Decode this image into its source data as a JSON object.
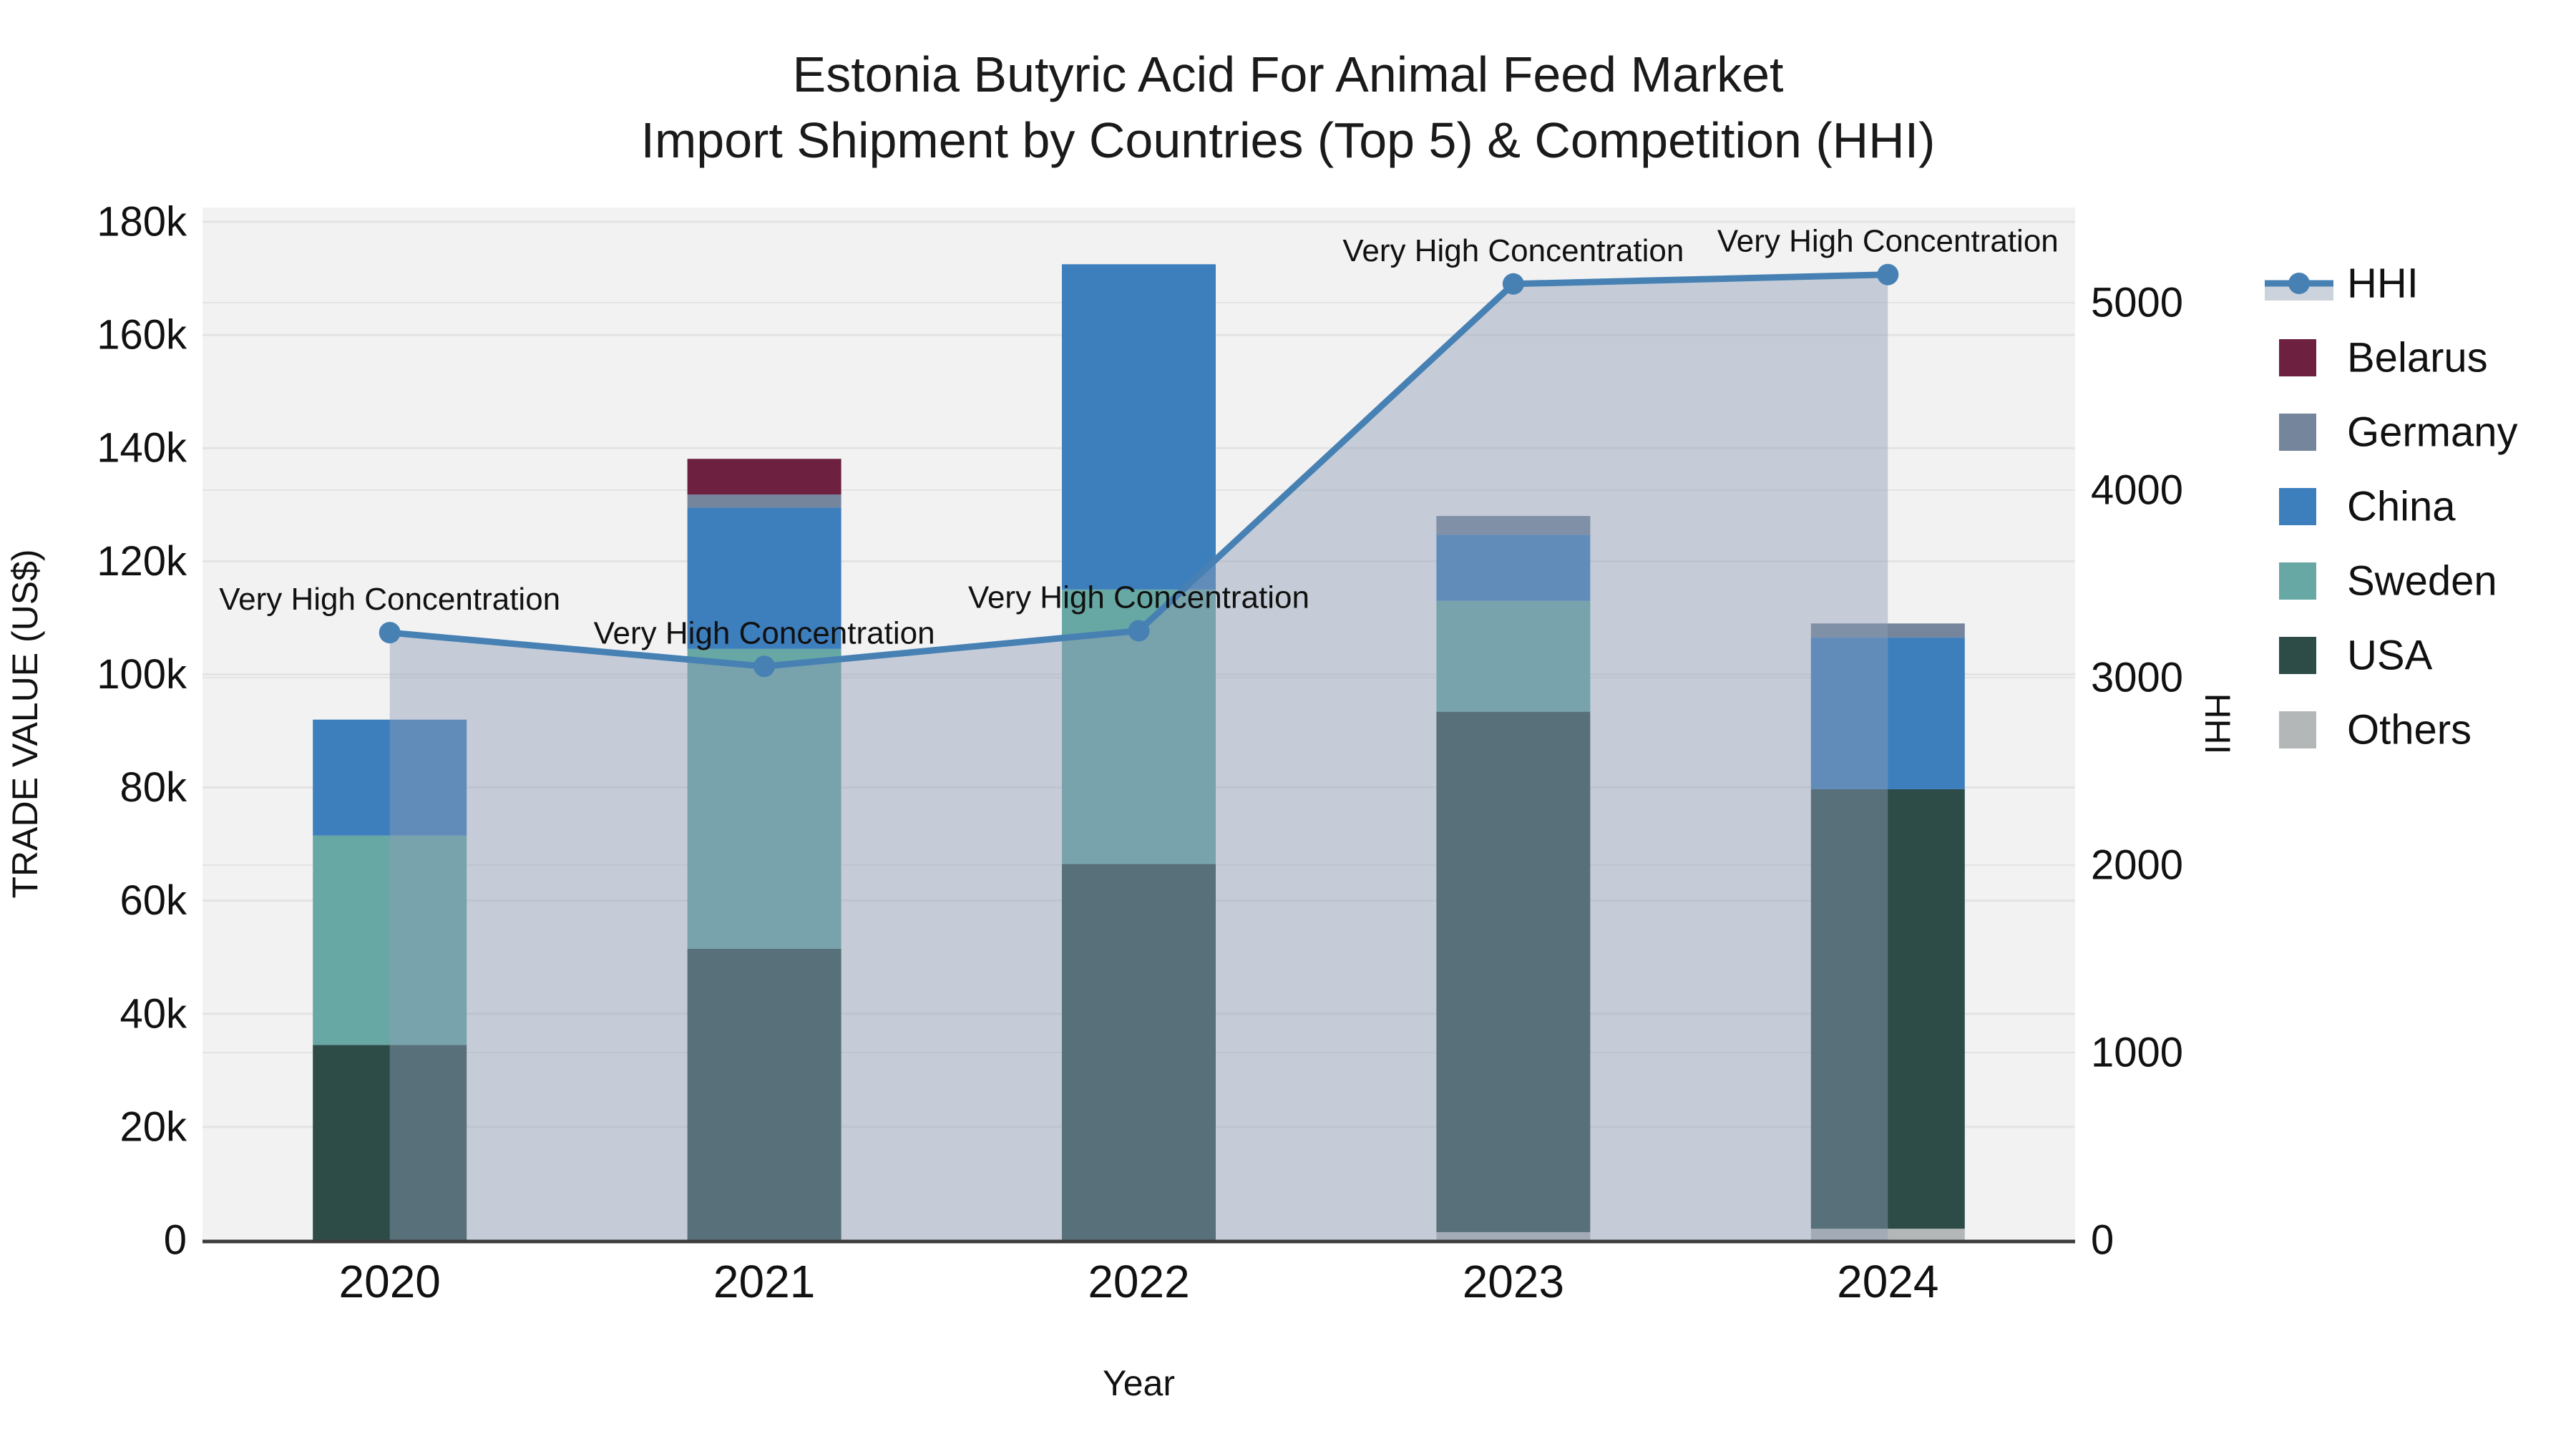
{
  "title": {
    "line1": "Estonia Butyric Acid For Animal Feed Market",
    "line2": "Import Shipment by Countries (Top 5) & Competition (HHI)"
  },
  "axes": {
    "x_label": "Year",
    "y_left_label": "TRADE VALUE (US$)",
    "y_right_label": "HHI",
    "y_left_ticks": [
      "0",
      "20k",
      "40k",
      "60k",
      "80k",
      "100k",
      "120k",
      "140k",
      "160k",
      "180k"
    ],
    "y_right_ticks": [
      "0",
      "1000",
      "2000",
      "3000",
      "4000",
      "5000"
    ]
  },
  "legend": {
    "items": [
      "HHI",
      "Belarus",
      "Germany",
      "China",
      "Sweden",
      "USA",
      "Others"
    ]
  },
  "chart_data": {
    "type": "bar+line",
    "title": "Estonia Butyric Acid For Animal Feed Market — Import Shipment by Countries (Top 5) & Competition (HHI)",
    "categories": [
      "2020",
      "2021",
      "2022",
      "2023",
      "2024"
    ],
    "xlabel": "Year",
    "ylabel_left": "TRADE VALUE (US$)",
    "ylabel_right": "HHI",
    "ylim_left": [
      0,
      180000
    ],
    "ylim_right": [
      0,
      5500
    ],
    "grid": "on",
    "legend_position": "right",
    "bar_stack_order_bottom_to_top": [
      "Others",
      "USA",
      "Sweden",
      "China",
      "Germany",
      "Belarus"
    ],
    "series": [
      {
        "name": "Belarus",
        "type": "bar",
        "color": "#6d2040",
        "values": [
          0,
          6300,
          0,
          0,
          0
        ]
      },
      {
        "name": "Germany",
        "type": "bar",
        "color": "#75859b",
        "values": [
          0,
          2300,
          0,
          3300,
          2500
        ]
      },
      {
        "name": "China",
        "type": "bar",
        "color": "#3d7ebd",
        "values": [
          20500,
          25000,
          57500,
          11700,
          26800
        ]
      },
      {
        "name": "Sweden",
        "type": "bar",
        "color": "#68a8a4",
        "values": [
          37000,
          53000,
          48500,
          19600,
          0
        ]
      },
      {
        "name": "USA",
        "type": "bar",
        "color": "#2d4c48",
        "values": [
          34500,
          51500,
          66500,
          92000,
          77700
        ]
      },
      {
        "name": "Others",
        "type": "bar",
        "color": "#b4b7b8",
        "values": [
          0,
          0,
          0,
          1400,
          2000
        ]
      }
    ],
    "bar_totals": [
      92000,
      138100,
      172500,
      128000,
      109000
    ],
    "line_series": {
      "name": "HHI",
      "color": "#4781b4",
      "area_fill": "rgba(141,158,181,0.45)",
      "values": [
        3240,
        3060,
        3250,
        5100,
        5150
      ]
    },
    "annotations": [
      {
        "year": "2020",
        "text": "Very High Concentration"
      },
      {
        "year": "2021",
        "text": "Very High Concentration"
      },
      {
        "year": "2022",
        "text": "Very High Concentration"
      },
      {
        "year": "2023",
        "text": "Very High Concentration"
      },
      {
        "year": "2024",
        "text": "Very High Concentration"
      }
    ],
    "colors": {
      "plot_background": "#f2f2f2",
      "gridline": "#e3e3e3",
      "axis_line": "#3c3c3c",
      "text": "#111111"
    }
  }
}
